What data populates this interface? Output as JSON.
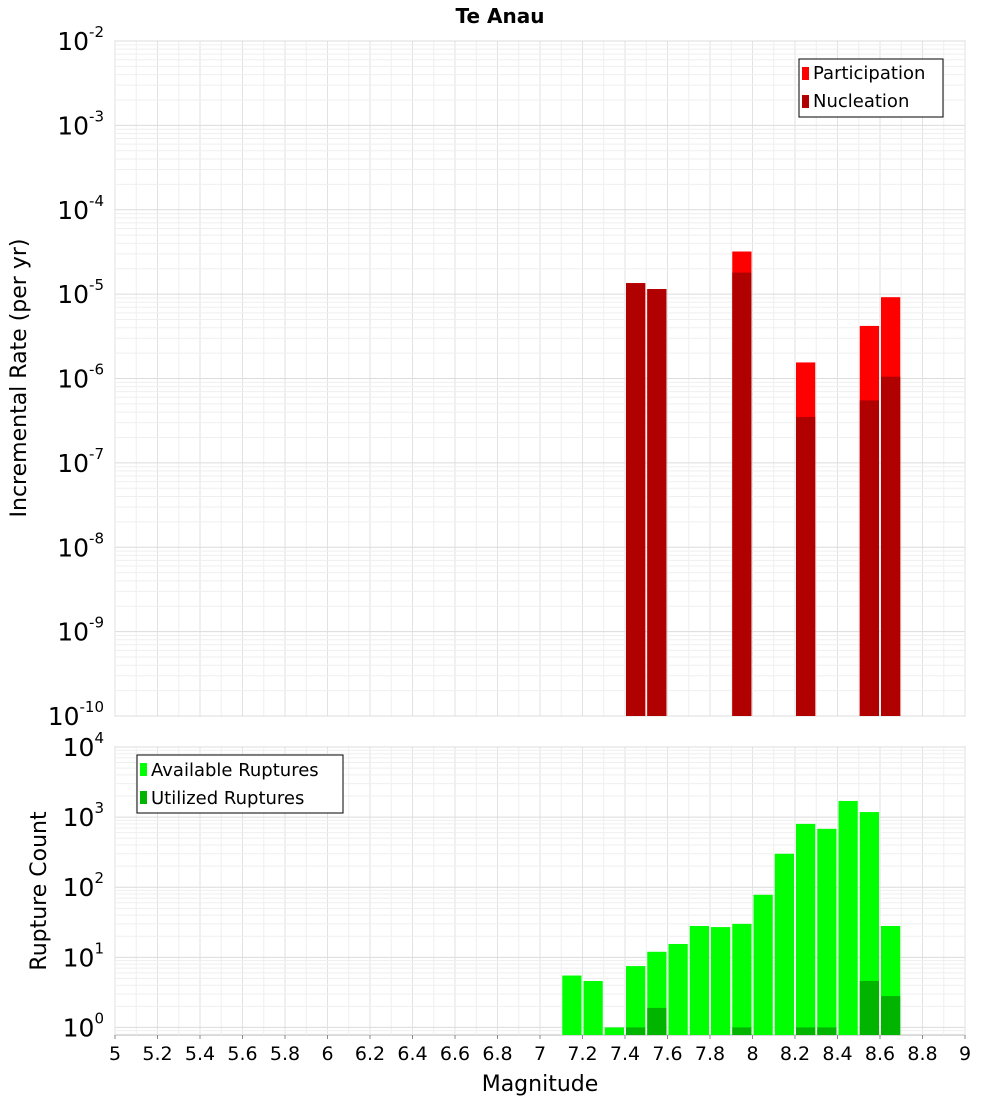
{
  "page": {
    "title": "Te Anau"
  },
  "chart_data": [
    {
      "id": "rate-panel",
      "type": "bar",
      "title": "Te Anau",
      "xlabel": "",
      "ylabel": "Incremental Rate (per yr)",
      "xlim": [
        5,
        9
      ],
      "ylim": [
        1e-10,
        0.01
      ],
      "log_y": true,
      "bar_width": 0.1,
      "grid": true,
      "legend_position": "top-right",
      "ytick_exponents": [
        -10,
        -9,
        -8,
        -7,
        -6,
        -5,
        -4,
        -3,
        -2
      ],
      "series": [
        {
          "name": "Participation",
          "color": "#ff0000",
          "points": [
            {
              "x": 7.45,
              "y": 1.35e-05
            },
            {
              "x": 7.55,
              "y": 1.15e-05
            },
            {
              "x": 7.95,
              "y": 3.2e-05
            },
            {
              "x": 8.25,
              "y": 1.55e-06
            },
            {
              "x": 8.55,
              "y": 4.2e-06
            },
            {
              "x": 8.65,
              "y": 9.2e-06
            }
          ]
        },
        {
          "name": "Nucleation",
          "color": "#b00000",
          "points": [
            {
              "x": 7.45,
              "y": 1.35e-05
            },
            {
              "x": 7.55,
              "y": 1.15e-05
            },
            {
              "x": 7.95,
              "y": 1.8e-05
            },
            {
              "x": 8.25,
              "y": 3.5e-07
            },
            {
              "x": 8.55,
              "y": 5.5e-07
            },
            {
              "x": 8.65,
              "y": 1.05e-06
            }
          ]
        }
      ]
    },
    {
      "id": "count-panel",
      "type": "bar",
      "title": "",
      "xlabel": "Magnitude",
      "ylabel": "Rupture Count",
      "xlim": [
        5,
        9
      ],
      "ylim": [
        0.78,
        10000
      ],
      "log_y": true,
      "bar_width": 0.1,
      "grid": true,
      "legend_position": "top-left",
      "ytick_exponents": [
        0,
        1,
        2,
        3,
        4
      ],
      "xtick_labels": [
        "5",
        "5.2",
        "5.4",
        "5.6",
        "5.8",
        "6",
        "6.2",
        "6.4",
        "6.6",
        "6.8",
        "7",
        "7.2",
        "7.4",
        "7.6",
        "7.8",
        "8",
        "8.2",
        "8.4",
        "8.6",
        "8.8",
        "9"
      ],
      "series": [
        {
          "name": "Available Ruptures",
          "color": "#00ff00",
          "points": [
            {
              "x": 7.15,
              "y": 5.5
            },
            {
              "x": 7.25,
              "y": 4.6
            },
            {
              "x": 7.35,
              "y": 1
            },
            {
              "x": 7.45,
              "y": 7.5
            },
            {
              "x": 7.55,
              "y": 12
            },
            {
              "x": 7.65,
              "y": 15.5
            },
            {
              "x": 7.75,
              "y": 28
            },
            {
              "x": 7.85,
              "y": 27
            },
            {
              "x": 7.95,
              "y": 30
            },
            {
              "x": 8.05,
              "y": 78
            },
            {
              "x": 8.15,
              "y": 300
            },
            {
              "x": 8.25,
              "y": 800
            },
            {
              "x": 8.35,
              "y": 680
            },
            {
              "x": 8.45,
              "y": 1700
            },
            {
              "x": 8.55,
              "y": 1180
            },
            {
              "x": 8.65,
              "y": 28
            }
          ]
        },
        {
          "name": "Utilized Ruptures",
          "color": "#00b400",
          "points": [
            {
              "x": 7.45,
              "y": 1
            },
            {
              "x": 7.55,
              "y": 1.9
            },
            {
              "x": 7.95,
              "y": 1
            },
            {
              "x": 8.25,
              "y": 1
            },
            {
              "x": 8.35,
              "y": 1
            },
            {
              "x": 8.55,
              "y": 4.6
            },
            {
              "x": 8.65,
              "y": 2.8
            }
          ]
        }
      ]
    }
  ]
}
